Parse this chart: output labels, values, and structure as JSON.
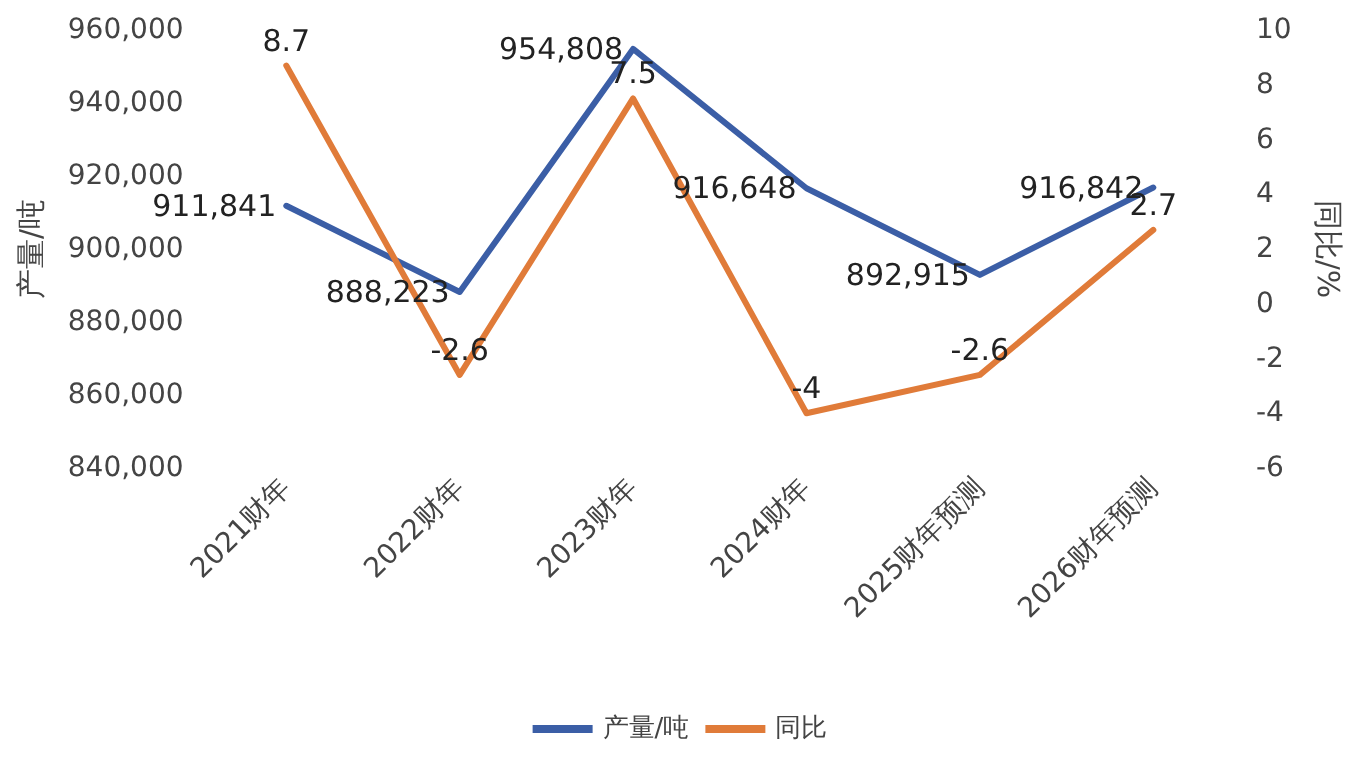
{
  "chart_data": {
    "type": "line",
    "categories": [
      "2021财年",
      "2022财年",
      "2023财年",
      "2024财年",
      "2025财年预测",
      "2026财年预测"
    ],
    "series": [
      {
        "name": "产量/吨",
        "color": "#3b5ea6",
        "values": [
          911841,
          888223,
          954808,
          916648,
          892915,
          916842
        ],
        "value_labels": [
          "911,841",
          "888,223",
          "954,808",
          "916,648",
          "892,915",
          "916,842"
        ]
      },
      {
        "name": "同比",
        "color": "#e07b39",
        "axis": "y2",
        "values": [
          8.7,
          -2.6,
          7.5,
          -4,
          -2.6,
          2.7
        ],
        "value_labels": [
          "8.7",
          "-2.6",
          "7.5",
          "-4",
          "-2.6",
          "2.7"
        ]
      }
    ],
    "ylabel": "产量/吨",
    "y2label": "同比/%",
    "ylim": [
      840000,
      960000
    ],
    "yticks": [
      {
        "value": 840000,
        "label": "840,000"
      },
      {
        "value": 860000,
        "label": "860,000"
      },
      {
        "value": 880000,
        "label": "880,000"
      },
      {
        "value": 900000,
        "label": "900,000"
      },
      {
        "value": 920000,
        "label": "920,000"
      },
      {
        "value": 940000,
        "label": "940,000"
      },
      {
        "value": 960000,
        "label": "960,000"
      }
    ],
    "y2lim": [
      -6,
      10
    ],
    "y2ticks": [
      -6,
      -4,
      -2,
      0,
      2,
      4,
      6,
      8,
      10
    ],
    "grid": false,
    "legend": "bottom",
    "marker": "none",
    "line_style": "solid"
  }
}
